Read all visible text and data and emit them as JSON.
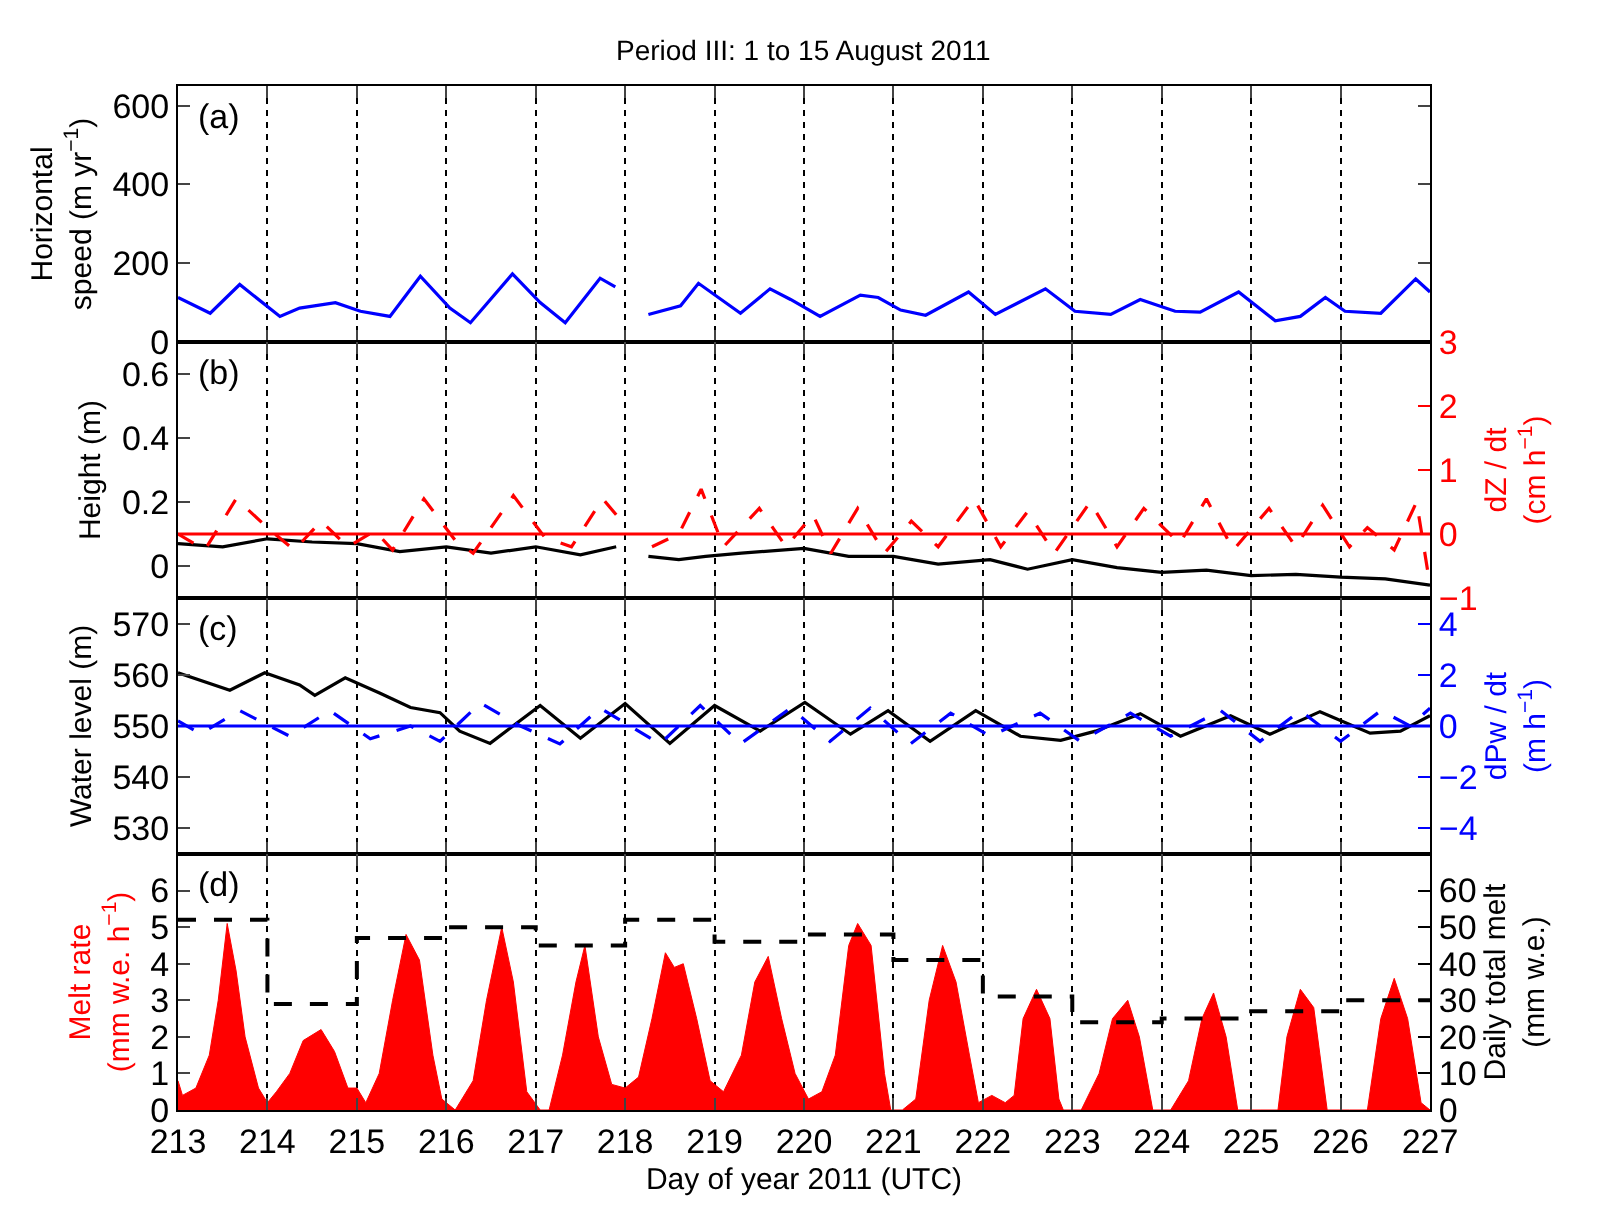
{
  "chart_data": [
    {
      "type": "line",
      "title": "Period III: 1 to 15 August 2011",
      "ylabel": "Horizontal\nspeed (m yr$^{−1}$)",
      "annotations": [
        "(a)"
      ],
      "xlim": [
        213,
        227
      ],
      "xticks": [
        213,
        214,
        215,
        216,
        217,
        218,
        219,
        220,
        221,
        222,
        223,
        224,
        225,
        226,
        227
      ],
      "ylim": [
        0,
        650
      ],
      "yticks": [
        0,
        200,
        400,
        600
      ],
      "grid": "x",
      "tick_labels": "y",
      "marker": "none",
      "series": [
        {
          "color": "#0000ff",
          "x": [
            213,
            213.36,
            213.69,
            214.14,
            214.36,
            214.76,
            215.04,
            215.37,
            215.71,
            216.04,
            216.27,
            216.74,
            217.05,
            217.33,
            217.72,
            217.89,
            218.05,
            218.26,
            218.62,
            218.82,
            219.29,
            219.62,
            219.85,
            220.18,
            220.63,
            220.83,
            221.08,
            221.36,
            221.84,
            222.14,
            222.7,
            223.03,
            223.43,
            223.76,
            224.15,
            224.43,
            224.86,
            225.27,
            225.55,
            225.83,
            226.05,
            226.45,
            226.84,
            227
          ],
          "values": [
            113,
            73,
            146,
            65,
            86,
            100,
            78,
            65,
            167,
            86,
            49,
            173,
            100,
            49,
            162,
            140,
            null,
            70,
            92,
            149,
            73,
            135,
            108,
            65,
            119,
            113,
            81,
            68,
            127,
            70,
            135,
            78,
            70,
            108,
            78,
            76,
            127,
            54,
            65,
            113,
            78,
            73,
            160,
            127
          ]
        }
      ]
    },
    {
      "type": "line",
      "ylabel": "Height (m)",
      "y2label": "dZ / dt\n(cm h$^{−1}$)",
      "annotations": [
        "(b)"
      ],
      "xlim": [
        213,
        227
      ],
      "xticks": [
        213,
        214,
        215,
        216,
        217,
        218,
        219,
        220,
        221,
        222,
        223,
        224,
        225,
        226,
        227
      ],
      "ylim": [
        -0.1,
        0.7
      ],
      "yticks": [
        0,
        0.2,
        0.4,
        0.6
      ],
      "y2lim": [
        -1,
        3
      ],
      "y2ticks": [
        -1,
        0,
        1,
        2,
        3
      ],
      "grid": "x",
      "tick_labels": "y",
      "marker": "none",
      "ref_lines": [
        {
          "axis": "y2",
          "value": 0,
          "color": "#ff0000",
          "line_style": "solid"
        }
      ],
      "series": [
        {
          "color": "#000000",
          "x": [
            213,
            213.5,
            214,
            214.5,
            215,
            215.48,
            216,
            216.5,
            217,
            217.5,
            217.9,
            218.05,
            218.26,
            218.6,
            218.9,
            219.3,
            220,
            220.5,
            221,
            221.5,
            222.08,
            222.5,
            223,
            223.5,
            224,
            224.5,
            225,
            225.5,
            226,
            226.5,
            227
          ],
          "values": [
            0.07,
            0.06,
            0.085,
            0.075,
            0.07,
            0.045,
            0.06,
            0.04,
            0.06,
            0.035,
            0.06,
            null,
            0.03,
            0.02,
            0.03,
            0.04,
            0.055,
            0.03,
            0.03,
            0.006,
            0.02,
            -0.01,
            0.02,
            -0.005,
            -0.02,
            -0.013,
            -0.03,
            -0.026,
            -0.035,
            -0.04,
            -0.06
          ]
        },
        {
          "color": "#ff0000",
          "axis": "y2",
          "line_style": "dashed",
          "x": [
            213,
            213.3,
            213.65,
            214,
            214.3,
            214.6,
            214.9,
            215.2,
            215.4,
            215.75,
            216.1,
            216.3,
            216.75,
            217.1,
            217.4,
            217.75,
            217.9,
            218.05,
            218.3,
            218.6,
            218.85,
            219.1,
            219.5,
            219.8,
            220.1,
            220.3,
            220.6,
            220.9,
            221.2,
            221.5,
            221.9,
            222.2,
            222.5,
            222.8,
            223.2,
            223.5,
            223.8,
            224.2,
            224.5,
            224.8,
            225.2,
            225.5,
            225.8,
            226.1,
            226.3,
            226.6,
            226.85,
            227
          ],
          "values": [
            0,
            -0.25,
            0.55,
            0.1,
            -0.25,
            0.2,
            -0.2,
            0.05,
            -0.25,
            0.55,
            -0.1,
            -0.3,
            0.6,
            -0.05,
            -0.2,
            0.55,
            0.3,
            null,
            -0.2,
            0,
            0.7,
            -0.2,
            0.4,
            -0.2,
            0.3,
            -0.3,
            0.4,
            -0.3,
            0.2,
            -0.2,
            0.55,
            -0.2,
            0.35,
            -0.3,
            0.5,
            -0.2,
            0.4,
            -0.15,
            0.55,
            -0.25,
            0.4,
            -0.2,
            0.45,
            -0.2,
            0.1,
            -0.25,
            0.5,
            -0.8
          ]
        }
      ]
    },
    {
      "type": "line",
      "ylabel": "Water level (m)",
      "y2label": "dPw / dt\n(m h$^{−1}$)",
      "annotations": [
        "(c)"
      ],
      "xlim": [
        213,
        227
      ],
      "xticks": [
        213,
        214,
        215,
        216,
        217,
        218,
        219,
        220,
        221,
        222,
        223,
        224,
        225,
        226,
        227
      ],
      "ylim": [
        525,
        575
      ],
      "yticks": [
        530,
        540,
        550,
        560,
        570
      ],
      "y2lim": [
        -5,
        5
      ],
      "y2ticks": [
        -4,
        -2,
        0,
        2,
        4
      ],
      "grid": "x",
      "tick_labels": "y",
      "marker": "none",
      "ref_lines": [
        {
          "axis": "y2",
          "value": 0,
          "color": "#0000ff",
          "line_style": "solid"
        }
      ],
      "series": [
        {
          "color": "#000000",
          "x": [
            213,
            213.58,
            213.97,
            214.36,
            214.53,
            214.87,
            215.26,
            215.6,
            215.93,
            216.15,
            216.49,
            217.05,
            217.5,
            218,
            218.5,
            219,
            219.51,
            220.01,
            220.52,
            220.94,
            221.41,
            221.92,
            222.42,
            222.87,
            223.26,
            223.76,
            224.21,
            224.77,
            225.21,
            225.77,
            226.33,
            226.67,
            227
          ],
          "values": [
            560.4,
            557,
            560.4,
            558,
            556,
            559.4,
            556.4,
            553.6,
            552.6,
            549,
            546.6,
            554,
            547.6,
            554.4,
            546.6,
            554,
            549,
            554.6,
            548.4,
            553,
            547,
            553,
            548,
            547.2,
            549,
            552.4,
            548,
            552,
            548.4,
            552.8,
            548.6,
            549,
            552
          ]
        },
        {
          "color": "#0000ff",
          "axis": "y2",
          "line_style": "dashed",
          "x": [
            213,
            213.25,
            213.69,
            214.25,
            214.7,
            215.15,
            215.6,
            215.93,
            216.38,
            216.83,
            217.27,
            217.72,
            218.39,
            218.84,
            219.29,
            219.85,
            220.29,
            220.74,
            221.19,
            221.64,
            222.08,
            222.64,
            223.09,
            223.65,
            224.1,
            224.66,
            225.1,
            225.55,
            226,
            226.45,
            226.78,
            227
          ],
          "values": [
            0.2,
            -0.3,
            0.6,
            -0.4,
            0.6,
            -0.5,
            0,
            -0.6,
            0.9,
            0,
            -0.7,
            0.7,
            -0.7,
            0.8,
            -0.7,
            0.7,
            -0.6,
            0.7,
            -0.7,
            0.5,
            -0.4,
            0.5,
            -0.6,
            0.5,
            -0.4,
            0.6,
            -0.6,
            0.6,
            -0.6,
            0.6,
            0,
            0.7
          ]
        }
      ]
    },
    {
      "type": "area",
      "xlabel": "Day of year 2011 (UTC)",
      "ylabel": "Melt rate\n(mm w.e. h$^{−1}$)",
      "y2label": "Daily total melt\n(mm w.e.)",
      "annotations": [
        "(d)"
      ],
      "xlim": [
        213,
        227
      ],
      "xticks": [
        213,
        214,
        215,
        216,
        217,
        218,
        219,
        220,
        221,
        222,
        223,
        224,
        225,
        226,
        227
      ],
      "ylim": [
        0,
        7
      ],
      "yticks": [
        0,
        1,
        2,
        3,
        4,
        5,
        6
      ],
      "y2lim": [
        0,
        70
      ],
      "y2ticks": [
        0,
        10,
        20,
        30,
        40,
        50,
        60
      ],
      "grid": "x",
      "marker": "none",
      "series": [
        {
          "color": "#ff0000",
          "x": [
            213,
            213.05,
            213.2,
            213.35,
            213.45,
            213.55,
            213.65,
            213.75,
            213.9,
            214,
            214.1,
            214.25,
            214.4,
            214.6,
            214.75,
            214.9,
            215,
            215.1,
            215.25,
            215.4,
            215.55,
            215.7,
            215.85,
            215.95,
            216.1,
            216.3,
            216.45,
            216.62,
            216.75,
            216.9,
            217.05,
            217.15,
            217.3,
            217.45,
            217.55,
            217.7,
            217.85,
            218,
            218.15,
            218.3,
            218.45,
            218.55,
            218.65,
            218.8,
            218.95,
            219.1,
            219.3,
            219.45,
            219.6,
            219.75,
            219.9,
            220.05,
            220.2,
            220.35,
            220.5,
            220.6,
            220.75,
            220.9,
            220.97,
            221.1,
            221.25,
            221.4,
            221.55,
            221.7,
            221.85,
            221.95,
            222.1,
            222.25,
            222.35,
            222.45,
            222.6,
            222.75,
            222.85,
            222.9,
            223.1,
            223.3,
            223.45,
            223.62,
            223.75,
            223.9,
            224.1,
            224.3,
            224.45,
            224.58,
            224.72,
            224.85,
            225.1,
            225.3,
            225.4,
            225.55,
            225.7,
            225.85,
            226.1,
            226.3,
            226.45,
            226.6,
            226.75,
            226.9,
            227
          ],
          "values": [
            0.8,
            0.4,
            0.6,
            1.5,
            3.0,
            5.1,
            3.8,
            2.0,
            0.6,
            0.2,
            0.5,
            1.0,
            1.9,
            2.2,
            1.6,
            0.6,
            0.6,
            0.2,
            1.0,
            3.0,
            4.8,
            4.1,
            1.5,
            0.3,
            0,
            0.8,
            3.0,
            5.0,
            3.5,
            0.5,
            0,
            0,
            1.5,
            3.5,
            4.5,
            2.0,
            0.7,
            0.6,
            0.9,
            2.5,
            4.3,
            3.9,
            4.0,
            2.5,
            0.8,
            0.5,
            1.5,
            3.5,
            4.2,
            2.5,
            1.0,
            0.3,
            0.5,
            1.5,
            4.5,
            5.1,
            4.5,
            1.0,
            0,
            0,
            0.3,
            3.0,
            4.5,
            3.5,
            1.5,
            0.2,
            0.4,
            0.2,
            0.4,
            2.5,
            3.3,
            2.5,
            0.3,
            0,
            0,
            1.0,
            2.5,
            3.0,
            2.0,
            0,
            0,
            0.8,
            2.5,
            3.2,
            2.0,
            0,
            0,
            0,
            2.0,
            3.3,
            2.8,
            0,
            0,
            0,
            2.5,
            3.6,
            2.5,
            0.2,
            0
          ]
        },
        {
          "type": "step",
          "color": "#000000",
          "axis": "y2",
          "line_style": "dashed",
          "x": [
            213,
            214,
            215,
            216,
            217,
            218,
            219,
            220,
            221,
            222,
            223,
            224,
            225,
            226,
            227
          ],
          "values": [
            52,
            29,
            47,
            50,
            45,
            52,
            46,
            48,
            41,
            31,
            24,
            25,
            27,
            30,
            30
          ]
        }
      ]
    }
  ]
}
